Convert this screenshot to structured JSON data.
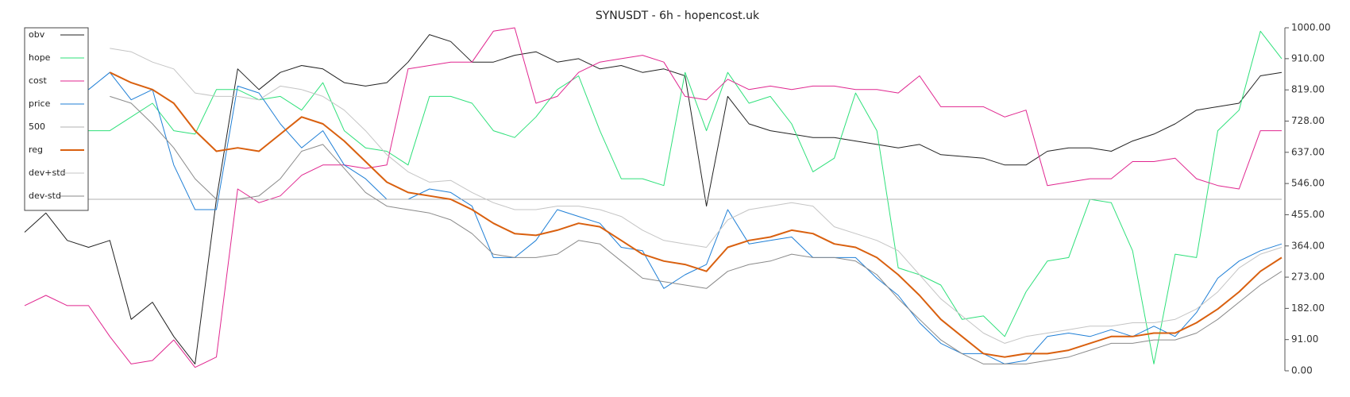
{
  "chart_data": {
    "type": "line",
    "title": "SYNUSDT - 6h - hopencost.uk",
    "ylim": [
      0,
      1000
    ],
    "yticks": [
      {
        "value": 0,
        "label": "0.00"
      },
      {
        "value": 91,
        "label": "91.00"
      },
      {
        "value": 182,
        "label": "182.00"
      },
      {
        "value": 273,
        "label": "273.00"
      },
      {
        "value": 364,
        "label": "364.00"
      },
      {
        "value": 455,
        "label": "455.00"
      },
      {
        "value": 546,
        "label": "546.00"
      },
      {
        "value": 637,
        "label": "637.00"
      },
      {
        "value": 728,
        "label": "728.00"
      },
      {
        "value": 819,
        "label": "819.00"
      },
      {
        "value": 910,
        "label": "910.00"
      },
      {
        "value": 1000,
        "label": "1000.00"
      }
    ],
    "grid": false,
    "legend": "upper left",
    "series": [
      {
        "name": "obv",
        "color": "#222222",
        "width": 1,
        "values": [
          404,
          460,
          380,
          360,
          380,
          150,
          200,
          100,
          20,
          500,
          880,
          820,
          870,
          890,
          880,
          840,
          830,
          840,
          900,
          980,
          960,
          900,
          900,
          920,
          930,
          900,
          910,
          880,
          890,
          870,
          880,
          860,
          480,
          800,
          720,
          700,
          690,
          680,
          680,
          670,
          660,
          650,
          660,
          630,
          625,
          620,
          600,
          600,
          640,
          650,
          650,
          640,
          670,
          690,
          720,
          760,
          770,
          780,
          860,
          870
        ]
      },
      {
        "name": "hope",
        "color": "#2ee07a",
        "width": 1,
        "values": [
          null,
          null,
          null,
          700,
          700,
          740,
          780,
          700,
          690,
          820,
          820,
          790,
          800,
          760,
          840,
          700,
          650,
          640,
          600,
          800,
          800,
          780,
          700,
          680,
          740,
          820,
          860,
          700,
          560,
          560,
          540,
          870,
          700,
          870,
          780,
          800,
          720,
          580,
          620,
          810,
          700,
          300,
          280,
          250,
          150,
          160,
          100,
          230,
          320,
          330,
          500,
          490,
          350,
          20,
          340,
          330,
          700,
          760,
          990,
          910
        ]
      },
      {
        "name": "cost",
        "color": "#e0268f",
        "width": 1,
        "values": [
          190,
          220,
          190,
          190,
          100,
          20,
          30,
          90,
          10,
          40,
          530,
          490,
          510,
          570,
          600,
          600,
          590,
          600,
          880,
          890,
          900,
          900,
          990,
          1000,
          780,
          800,
          870,
          900,
          910,
          920,
          900,
          800,
          790,
          850,
          820,
          830,
          820,
          830,
          830,
          820,
          820,
          810,
          860,
          770,
          770,
          770,
          740,
          760,
          540,
          550,
          560,
          560,
          610,
          610,
          620,
          560,
          540,
          530,
          700,
          700
        ]
      },
      {
        "name": "price",
        "color": "#1f7fd6",
        "width": 1,
        "values": [
          null,
          null,
          null,
          820,
          870,
          790,
          820,
          600,
          470,
          470,
          830,
          810,
          720,
          650,
          700,
          600,
          560,
          500,
          500,
          530,
          520,
          480,
          330,
          330,
          380,
          470,
          450,
          430,
          360,
          350,
          240,
          280,
          310,
          470,
          370,
          380,
          390,
          330,
          330,
          330,
          270,
          220,
          140,
          80,
          50,
          50,
          20,
          30,
          100,
          110,
          100,
          120,
          100,
          130,
          100,
          170,
          270,
          320,
          350,
          370
        ]
      },
      {
        "name": "500",
        "color": "#b0b0b0",
        "width": 1,
        "values": [
          500,
          500,
          500,
          500,
          500,
          500,
          500,
          500,
          500,
          500,
          500,
          500,
          500,
          500,
          500,
          500,
          500,
          500,
          500,
          500,
          500,
          500,
          500,
          500,
          500,
          500,
          500,
          500,
          500,
          500,
          500,
          500,
          500,
          500,
          500,
          500,
          500,
          500,
          500,
          500,
          500,
          500,
          500,
          500,
          500,
          500,
          500,
          500,
          500,
          500,
          500,
          500,
          500,
          500,
          500,
          500,
          500,
          500,
          500,
          500
        ]
      },
      {
        "name": "reg",
        "color": "#d9600f",
        "width": 2,
        "values": [
          null,
          null,
          null,
          null,
          870,
          840,
          820,
          780,
          700,
          640,
          650,
          640,
          690,
          740,
          720,
          670,
          610,
          550,
          520,
          510,
          500,
          470,
          430,
          400,
          395,
          410,
          430,
          420,
          380,
          340,
          320,
          310,
          290,
          360,
          380,
          390,
          410,
          400,
          370,
          360,
          330,
          280,
          220,
          150,
          100,
          50,
          40,
          50,
          50,
          60,
          80,
          100,
          100,
          110,
          110,
          140,
          180,
          230,
          290,
          330
        ]
      },
      {
        "name": "dev+std",
        "color": "#c4c4c4",
        "width": 1,
        "values": [
          null,
          null,
          null,
          null,
          940,
          930,
          900,
          880,
          810,
          800,
          800,
          790,
          830,
          820,
          800,
          760,
          700,
          630,
          580,
          550,
          555,
          520,
          490,
          470,
          470,
          480,
          480,
          470,
          450,
          410,
          380,
          370,
          360,
          440,
          470,
          480,
          490,
          480,
          420,
          400,
          380,
          350,
          280,
          210,
          160,
          110,
          80,
          100,
          110,
          120,
          130,
          130,
          140,
          140,
          150,
          180,
          230,
          300,
          340,
          360
        ]
      },
      {
        "name": "dev-std",
        "color": "#8a8a8a",
        "width": 1,
        "values": [
          null,
          null,
          null,
          null,
          800,
          780,
          720,
          650,
          560,
          500,
          500,
          510,
          560,
          640,
          660,
          590,
          520,
          480,
          470,
          460,
          440,
          400,
          340,
          330,
          330,
          340,
          380,
          370,
          320,
          270,
          260,
          250,
          240,
          290,
          310,
          320,
          340,
          330,
          330,
          320,
          280,
          210,
          150,
          90,
          50,
          20,
          20,
          20,
          30,
          40,
          60,
          80,
          80,
          90,
          90,
          110,
          150,
          200,
          250,
          290
        ]
      }
    ]
  }
}
